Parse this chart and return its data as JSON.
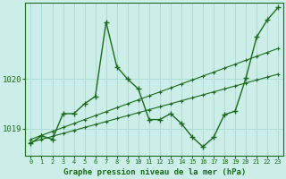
{
  "title": "Graphe pression niveau de la mer (hPa)",
  "background_color": "#cceee8",
  "grid_color": "#aaddd5",
  "line_color": "#1a6b1a",
  "xlim": [
    -0.5,
    23.5
  ],
  "ylim": [
    1018.45,
    1021.55
  ],
  "yticks": [
    1019,
    1020
  ],
  "xticks": [
    0,
    1,
    2,
    3,
    4,
    5,
    6,
    7,
    8,
    9,
    10,
    11,
    12,
    13,
    14,
    15,
    16,
    17,
    18,
    19,
    20,
    21,
    22,
    23
  ],
  "series1_x": [
    0,
    1,
    2,
    3,
    4,
    5,
    6,
    7,
    8,
    9,
    10,
    11,
    12,
    13,
    14,
    15,
    16,
    17,
    18,
    19,
    20,
    21,
    22,
    23
  ],
  "series1_y": [
    1018.7,
    1018.85,
    1018.78,
    1019.3,
    1019.3,
    1019.5,
    1019.65,
    1021.15,
    1020.25,
    1020.0,
    1019.8,
    1019.18,
    1019.18,
    1019.3,
    1019.1,
    1018.83,
    1018.63,
    1018.82,
    1019.28,
    1019.35,
    1020.02,
    1020.85,
    1021.2,
    1021.45
  ],
  "series2_x": [
    0,
    1,
    2,
    3,
    4,
    5,
    6,
    7,
    8,
    9,
    10,
    11,
    12,
    13,
    14,
    15,
    16,
    17,
    18,
    19,
    20,
    21,
    22,
    23
  ],
  "series2_y": [
    1018.72,
    1018.78,
    1018.84,
    1018.9,
    1018.96,
    1019.02,
    1019.08,
    1019.14,
    1019.2,
    1019.26,
    1019.32,
    1019.38,
    1019.44,
    1019.5,
    1019.56,
    1019.62,
    1019.68,
    1019.74,
    1019.8,
    1019.86,
    1019.92,
    1019.98,
    1020.04,
    1020.1
  ],
  "series3_x": [
    0,
    1,
    2,
    3,
    4,
    5,
    6,
    7,
    8,
    9,
    10,
    11,
    12,
    13,
    14,
    15,
    16,
    17,
    18,
    19,
    20,
    21,
    22,
    23
  ],
  "series3_y": [
    1018.78,
    1018.86,
    1018.94,
    1019.02,
    1019.1,
    1019.18,
    1019.26,
    1019.34,
    1019.42,
    1019.5,
    1019.58,
    1019.66,
    1019.74,
    1019.82,
    1019.9,
    1019.98,
    1020.06,
    1020.14,
    1020.22,
    1020.3,
    1020.38,
    1020.46,
    1020.54,
    1020.62
  ]
}
